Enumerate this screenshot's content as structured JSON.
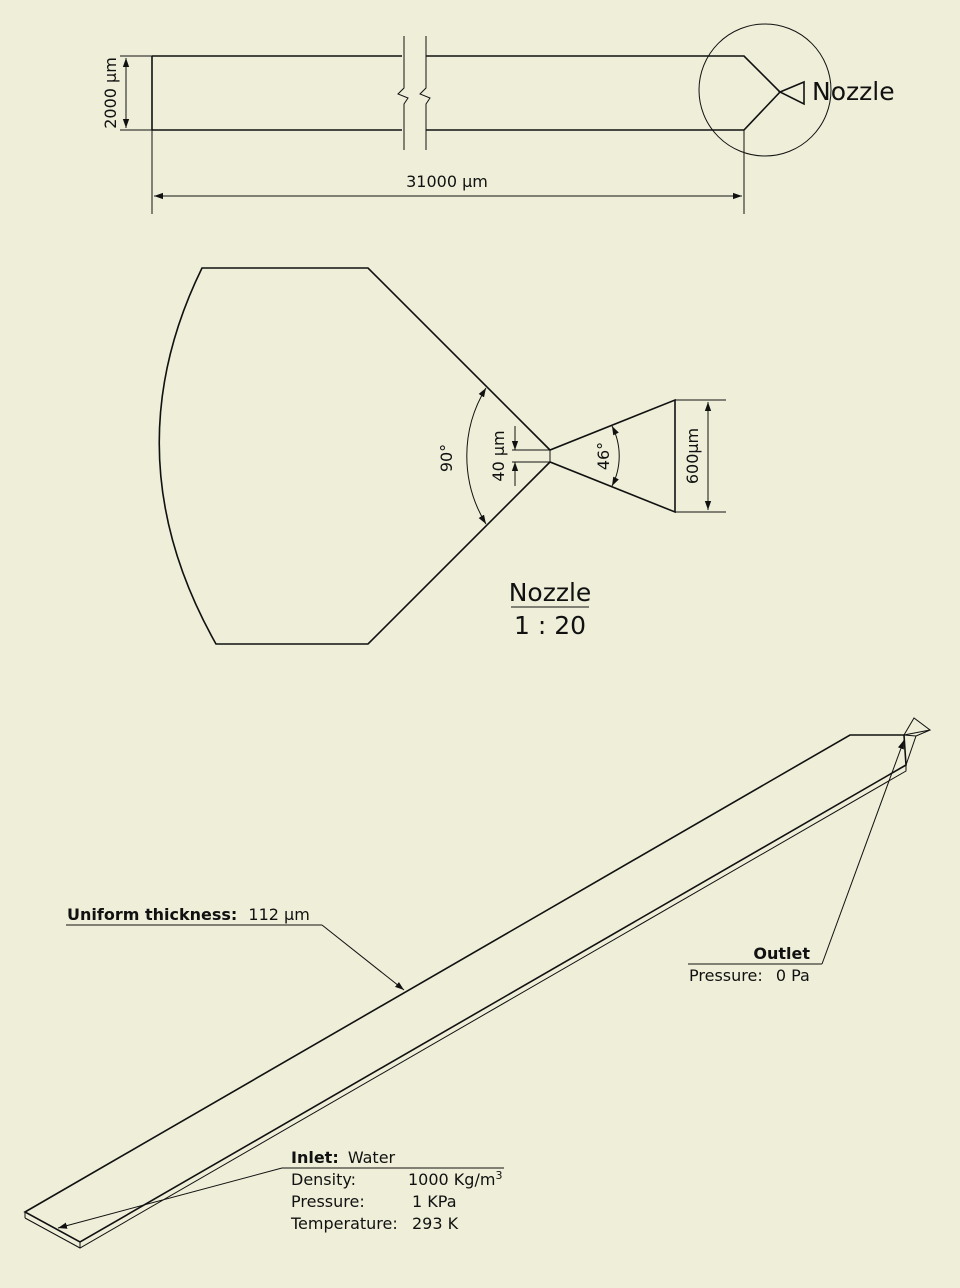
{
  "top_view": {
    "height_dim": "2000 µm",
    "length_dim": "31000 µm",
    "nozzle_callout": "Nozzle"
  },
  "detail_view": {
    "angle_left": "90°",
    "throat_dim": "40 µm",
    "angle_right": "46°",
    "outlet_dim": "600µm",
    "title": "Nozzle",
    "scale": "1 : 20"
  },
  "iso_view": {
    "thickness_label": "Uniform thickness:",
    "thickness_value": "112 µm",
    "outlet_label": "Outlet",
    "outlet_pressure_label": "Pressure:",
    "outlet_pressure_value": "0 Pa",
    "inlet_label": "Inlet:",
    "inlet_fluid": "Water",
    "inlet_props": [
      {
        "label": "Density:",
        "value": "1000 Kg/m",
        "sup": "3"
      },
      {
        "label": "Pressure:",
        "value": "1 KPa"
      },
      {
        "label": "Temperature:",
        "value": "293 K"
      }
    ]
  }
}
